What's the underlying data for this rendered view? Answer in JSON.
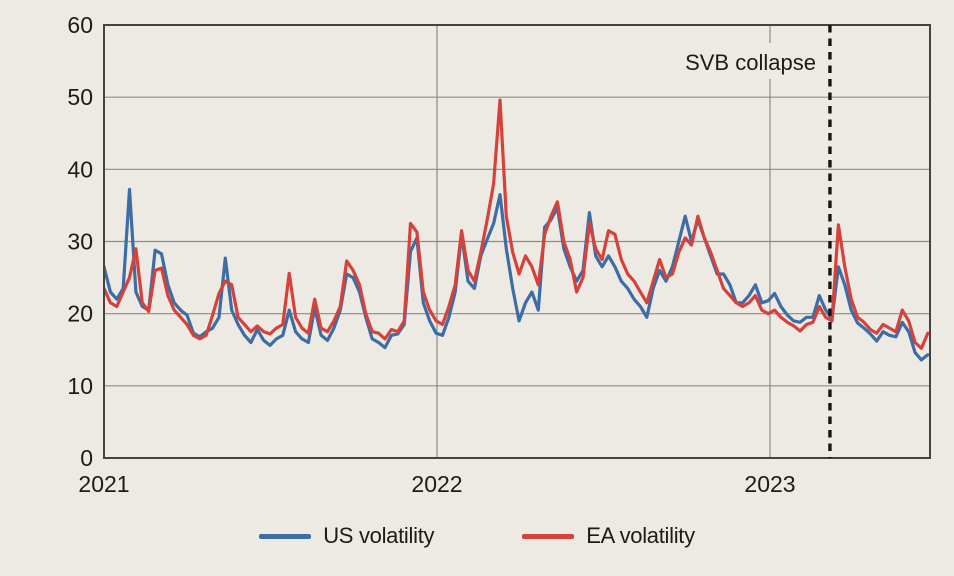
{
  "chart_data": {
    "type": "line",
    "title": "",
    "xlabel": "",
    "ylabel": "",
    "grid": true,
    "legend_position": "bottom",
    "x_axis": {
      "start_year": 2021,
      "point_step_days": 7,
      "tick_years": [
        2021,
        2022,
        2023
      ],
      "tick_labels": [
        "2021",
        "2022",
        "2023"
      ]
    },
    "y_axis": {
      "min": 0,
      "max": 60,
      "tick_step": 10,
      "tick_labels": [
        "0",
        "10",
        "20",
        "30",
        "40",
        "50",
        "60"
      ]
    },
    "annotation": {
      "text": "SVB collapse",
      "line_style": "dashed",
      "years_after_start": 2.18
    },
    "series": [
      {
        "name": "US volatility",
        "color": "#3c6da4",
        "values": [
          26.5,
          23,
          22,
          23.5,
          37.2,
          23,
          21,
          20.5,
          28.8,
          28.3,
          24,
          21.5,
          20.5,
          19.8,
          17.3,
          16.8,
          17.5,
          18,
          19.5,
          27.7,
          20.5,
          18.5,
          17,
          16,
          17.8,
          16.3,
          15.6,
          16.5,
          17,
          20.5,
          17.5,
          16.5,
          16,
          20.8,
          17,
          16.3,
          18,
          20.5,
          25.5,
          25,
          23,
          19.5,
          16.5,
          16,
          15.3,
          17,
          17.2,
          18.5,
          28.6,
          30.5,
          21.5,
          19,
          17.3,
          17,
          19.5,
          23,
          31,
          24.5,
          23.5,
          28,
          30.3,
          32.5,
          36.5,
          29,
          23.5,
          19,
          21.5,
          23,
          20.5,
          32,
          33,
          34.7,
          29,
          26.5,
          24.5,
          26,
          34,
          28,
          26.5,
          28,
          26.5,
          24.5,
          23.5,
          22,
          21,
          19.5,
          23.5,
          26,
          24.5,
          26.5,
          30,
          33.5,
          30,
          33,
          30.5,
          28,
          25.5,
          25.5,
          24,
          21.5,
          21.5,
          22.5,
          24,
          21.5,
          21.8,
          22.8,
          21,
          19.8,
          19,
          18.8,
          19.5,
          19.5,
          22.5,
          20.5,
          19.3,
          26.5,
          24,
          20.5,
          18.7,
          18,
          17.2,
          16.2,
          17.5,
          17,
          16.8,
          18.8,
          17.5,
          14.6,
          13.6,
          14.3
        ]
      },
      {
        "name": "EA volatility",
        "color": "#d5423c",
        "values": [
          23.5,
          21.5,
          21,
          23,
          25,
          29,
          21.5,
          20.3,
          26,
          26.3,
          22.5,
          20.5,
          19.5,
          18.5,
          17,
          16.5,
          17,
          19.8,
          22.8,
          24.5,
          24,
          19.5,
          18.5,
          17.5,
          18.3,
          17.5,
          17.2,
          18,
          18.5,
          25.6,
          19.5,
          18,
          17.3,
          22,
          18,
          17.5,
          19,
          21,
          27.3,
          26,
          24,
          20,
          17.5,
          17.3,
          16.5,
          17.8,
          17.5,
          19,
          32.5,
          31.3,
          23,
          20.5,
          19,
          18.5,
          21,
          24,
          31.5,
          26,
          24.5,
          28.5,
          33,
          38,
          49.6,
          33.5,
          28.5,
          25.5,
          28,
          26.5,
          24,
          31,
          33.5,
          35.5,
          30,
          27.5,
          23,
          25,
          32.5,
          29,
          27.5,
          31.5,
          31,
          27.5,
          25.5,
          24.5,
          23,
          21.5,
          24.5,
          27.5,
          25,
          25.5,
          28.5,
          30.5,
          29.5,
          33.5,
          30.5,
          28.5,
          26,
          23.5,
          22.5,
          21.5,
          21,
          21.5,
          22.5,
          20.5,
          20,
          20.5,
          19.5,
          18.8,
          18.3,
          17.6,
          18.5,
          18.8,
          21,
          19.5,
          19,
          32.3,
          26.5,
          22,
          19.5,
          18.8,
          17.8,
          17.3,
          18.5,
          18,
          17.5,
          20.5,
          19,
          16,
          15.2,
          17.3
        ]
      }
    ]
  },
  "colors": {
    "background": "#edeae3",
    "gridline": "#8f8c83",
    "plot_border": "#45433e",
    "dashed_line": "#161616",
    "tick_text": "#1c1b19"
  },
  "legend": {
    "us_label": "US volatility",
    "ea_label": "EA volatility"
  }
}
